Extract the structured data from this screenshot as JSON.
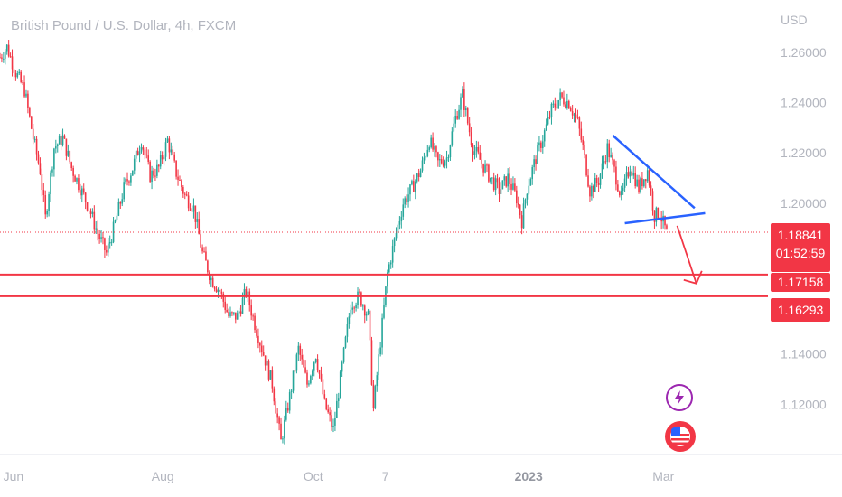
{
  "chart_data": {
    "type": "candlestick",
    "title": "British Pound / U.S. Dollar, 4h, FXCM",
    "currency": "USD",
    "y_ticks": [
      "1.26000",
      "1.24000",
      "1.22000",
      "1.20000",
      "1.14000",
      "1.12000"
    ],
    "ylim": [
      1.1,
      1.27
    ],
    "x_ticks": [
      {
        "label": "Jun",
        "bold": false
      },
      {
        "label": "Aug",
        "bold": false
      },
      {
        "label": "Oct",
        "bold": false
      },
      {
        "label": "7",
        "bold": false
      },
      {
        "label": "2023",
        "bold": true
      },
      {
        "label": "Mar",
        "bold": false
      }
    ],
    "price_path": [
      [
        0,
        1.258
      ],
      [
        4,
        1.262
      ],
      [
        9,
        1.252
      ],
      [
        14,
        1.245
      ],
      [
        19,
        1.226
      ],
      [
        23,
        1.213
      ],
      [
        26,
        1.194
      ],
      [
        31,
        1.222
      ],
      [
        36,
        1.226
      ],
      [
        41,
        1.214
      ],
      [
        46,
        1.206
      ],
      [
        51,
        1.198
      ],
      [
        56,
        1.188
      ],
      [
        61,
        1.18
      ],
      [
        66,
        1.192
      ],
      [
        71,
        1.206
      ],
      [
        76,
        1.214
      ],
      [
        81,
        1.225
      ],
      [
        86,
        1.211
      ],
      [
        91,
        1.214
      ],
      [
        96,
        1.225
      ],
      [
        101,
        1.212
      ],
      [
        106,
        1.203
      ],
      [
        111,
        1.198
      ],
      [
        116,
        1.18
      ],
      [
        121,
        1.17
      ],
      [
        126,
        1.165
      ],
      [
        131,
        1.155
      ],
      [
        136,
        1.155
      ],
      [
        141,
        1.165
      ],
      [
        146,
        1.152
      ],
      [
        151,
        1.14
      ],
      [
        156,
        1.128
      ],
      [
        161,
        1.105
      ],
      [
        166,
        1.123
      ],
      [
        171,
        1.142
      ],
      [
        176,
        1.128
      ],
      [
        181,
        1.14
      ],
      [
        186,
        1.12
      ],
      [
        191,
        1.11
      ],
      [
        196,
        1.135
      ],
      [
        201,
        1.16
      ],
      [
        206,
        1.163
      ],
      [
        211,
        1.155
      ],
      [
        214,
        1.118
      ],
      [
        218,
        1.145
      ],
      [
        222,
        1.172
      ],
      [
        226,
        1.185
      ],
      [
        231,
        1.2
      ],
      [
        236,
        1.206
      ],
      [
        241,
        1.213
      ],
      [
        246,
        1.225
      ],
      [
        251,
        1.216
      ],
      [
        256,
        1.218
      ],
      [
        261,
        1.234
      ],
      [
        265,
        1.243
      ],
      [
        268,
        1.232
      ],
      [
        271,
        1.222
      ],
      [
        276,
        1.216
      ],
      [
        281,
        1.21
      ],
      [
        286,
        1.205
      ],
      [
        291,
        1.21
      ],
      [
        296,
        1.202
      ],
      [
        299,
        1.193
      ],
      [
        302,
        1.206
      ],
      [
        307,
        1.218
      ],
      [
        311,
        1.226
      ],
      [
        316,
        1.237
      ],
      [
        321,
        1.242
      ],
      [
        326,
        1.24
      ],
      [
        331,
        1.232
      ],
      [
        334,
        1.222
      ],
      [
        338,
        1.205
      ],
      [
        343,
        1.209
      ],
      [
        348,
        1.222
      ],
      [
        352,
        1.213
      ],
      [
        356,
        1.202
      ],
      [
        361,
        1.215
      ],
      [
        366,
        1.206
      ],
      [
        371,
        1.213
      ],
      [
        375,
        1.195
      ],
      [
        378,
        1.196
      ],
      [
        382,
        1.188
      ]
    ],
    "x_domain": [
      0,
      440
    ],
    "current_price": {
      "price": "1.18841",
      "countdown": "01:52:59",
      "value": 1.18841
    },
    "horizontal_levels": [
      {
        "price": "1.17158",
        "value": 1.17158
      },
      {
        "price": "1.16293",
        "value": 1.16293
      }
    ],
    "triangle": {
      "upper": [
        [
          351,
          1.227
        ],
        [
          398,
          1.198
        ]
      ],
      "lower": [
        [
          358,
          1.192
        ],
        [
          404,
          1.196
        ]
      ]
    },
    "forecast_arrow": [
      [
        388,
        1.191
      ],
      [
        399,
        1.168
      ]
    ],
    "colors": {
      "up": "#26a69a",
      "down": "#f23645",
      "line": "#f23645",
      "triangle": "#2962ff",
      "axis": "#b2b5be"
    }
  },
  "events": [
    {
      "icon": "lightning-icon",
      "color": "#9c27b0"
    },
    {
      "icon": "us-flag-icon",
      "color": "#f23645"
    }
  ]
}
